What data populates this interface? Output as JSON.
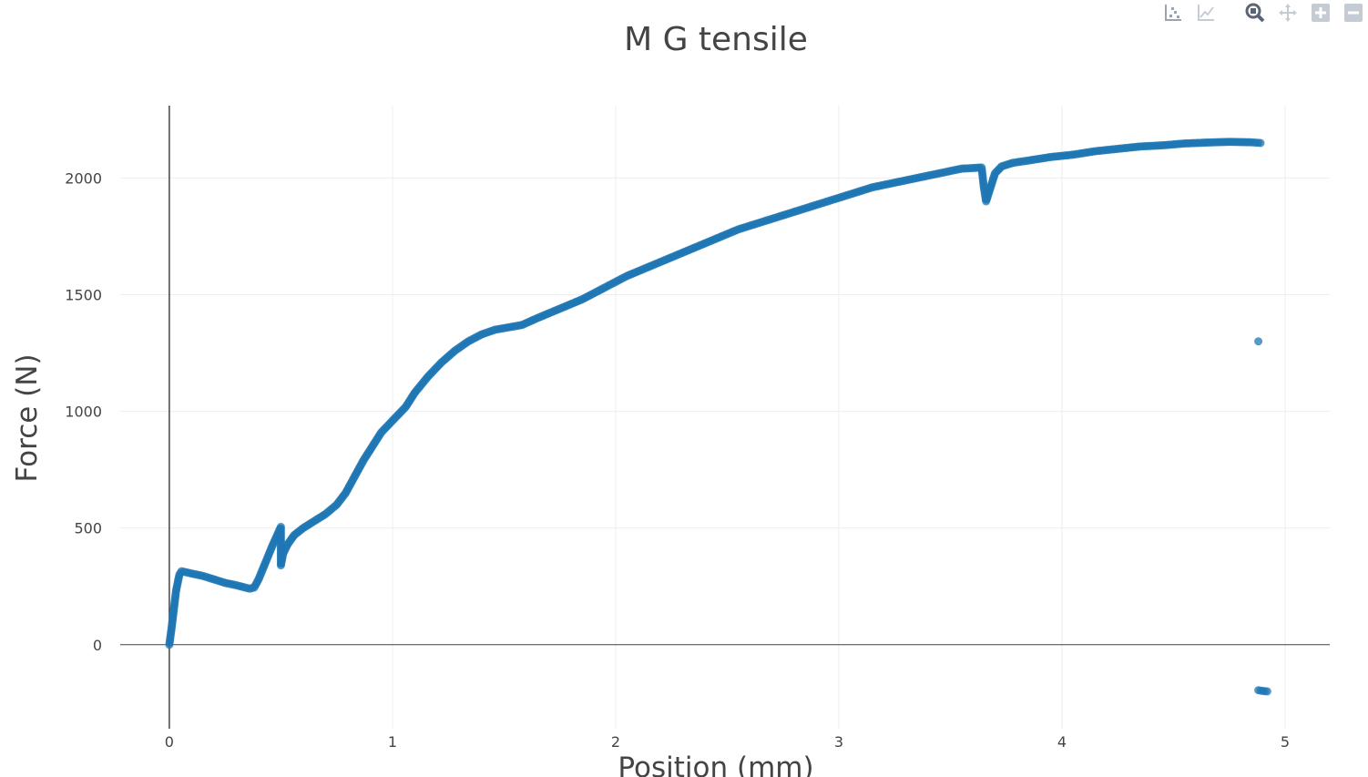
{
  "modebar": {
    "buttons": [
      {
        "icon": "show-closest-data-icon"
      },
      {
        "icon": "compare-data-icon"
      },
      {
        "icon": "zoom-icon"
      },
      {
        "icon": "pan-icon"
      },
      {
        "icon": "zoom-in-icon"
      },
      {
        "icon": "zoom-out-icon"
      }
    ]
  },
  "chart_data": {
    "type": "scatter",
    "title": "M G tensile",
    "xlabel": "Position (mm)",
    "ylabel": "Force (N)",
    "xlim": [
      -0.22,
      5.2
    ],
    "ylim": [
      -360,
      2310
    ],
    "xticks": [
      0,
      1,
      2,
      3,
      4,
      5
    ],
    "yticks": [
      0,
      500,
      1000,
      1500,
      2000
    ],
    "grid": true,
    "legend": "none",
    "marker_color": "#1f77b4",
    "series": [
      {
        "values": [
          [
            0.0,
            0
          ],
          [
            0.01,
            70
          ],
          [
            0.02,
            150
          ],
          [
            0.03,
            230
          ],
          [
            0.045,
            300
          ],
          [
            0.055,
            315
          ],
          [
            0.1,
            305
          ],
          [
            0.15,
            295
          ],
          [
            0.2,
            280
          ],
          [
            0.25,
            265
          ],
          [
            0.3,
            255
          ],
          [
            0.34,
            245
          ],
          [
            0.36,
            240
          ],
          [
            0.38,
            245
          ],
          [
            0.4,
            280
          ],
          [
            0.43,
            350
          ],
          [
            0.46,
            420
          ],
          [
            0.5,
            505
          ],
          [
            0.5,
            340
          ],
          [
            0.51,
            390
          ],
          [
            0.53,
            430
          ],
          [
            0.56,
            470
          ],
          [
            0.6,
            500
          ],
          [
            0.65,
            530
          ],
          [
            0.7,
            560
          ],
          [
            0.75,
            600
          ],
          [
            0.79,
            650
          ],
          [
            0.83,
            720
          ],
          [
            0.87,
            790
          ],
          [
            0.91,
            850
          ],
          [
            0.95,
            910
          ],
          [
            1.0,
            960
          ],
          [
            1.06,
            1020
          ],
          [
            1.1,
            1080
          ],
          [
            1.16,
            1150
          ],
          [
            1.22,
            1210
          ],
          [
            1.28,
            1260
          ],
          [
            1.34,
            1300
          ],
          [
            1.4,
            1330
          ],
          [
            1.46,
            1350
          ],
          [
            1.52,
            1360
          ],
          [
            1.58,
            1370
          ],
          [
            1.65,
            1400
          ],
          [
            1.75,
            1440
          ],
          [
            1.85,
            1480
          ],
          [
            1.95,
            1530
          ],
          [
            2.05,
            1580
          ],
          [
            2.15,
            1620
          ],
          [
            2.25,
            1660
          ],
          [
            2.35,
            1700
          ],
          [
            2.45,
            1740
          ],
          [
            2.55,
            1780
          ],
          [
            2.65,
            1810
          ],
          [
            2.75,
            1840
          ],
          [
            2.85,
            1870
          ],
          [
            2.95,
            1900
          ],
          [
            3.05,
            1930
          ],
          [
            3.15,
            1960
          ],
          [
            3.25,
            1980
          ],
          [
            3.35,
            2000
          ],
          [
            3.45,
            2020
          ],
          [
            3.55,
            2040
          ],
          [
            3.64,
            2045
          ],
          [
            3.65,
            1960
          ],
          [
            3.66,
            1900
          ],
          [
            3.68,
            1960
          ],
          [
            3.7,
            2020
          ],
          [
            3.73,
            2050
          ],
          [
            3.78,
            2065
          ],
          [
            3.85,
            2075
          ],
          [
            3.95,
            2090
          ],
          [
            4.05,
            2100
          ],
          [
            4.15,
            2115
          ],
          [
            4.25,
            2125
          ],
          [
            4.35,
            2135
          ],
          [
            4.45,
            2140
          ],
          [
            4.55,
            2148
          ],
          [
            4.65,
            2152
          ],
          [
            4.75,
            2155
          ],
          [
            4.85,
            2153
          ],
          [
            4.89,
            2150
          ],
          [
            4.88,
            1300
          ],
          [
            4.88,
            -195
          ],
          [
            4.9,
            -198
          ],
          [
            4.92,
            -200
          ]
        ]
      }
    ]
  }
}
